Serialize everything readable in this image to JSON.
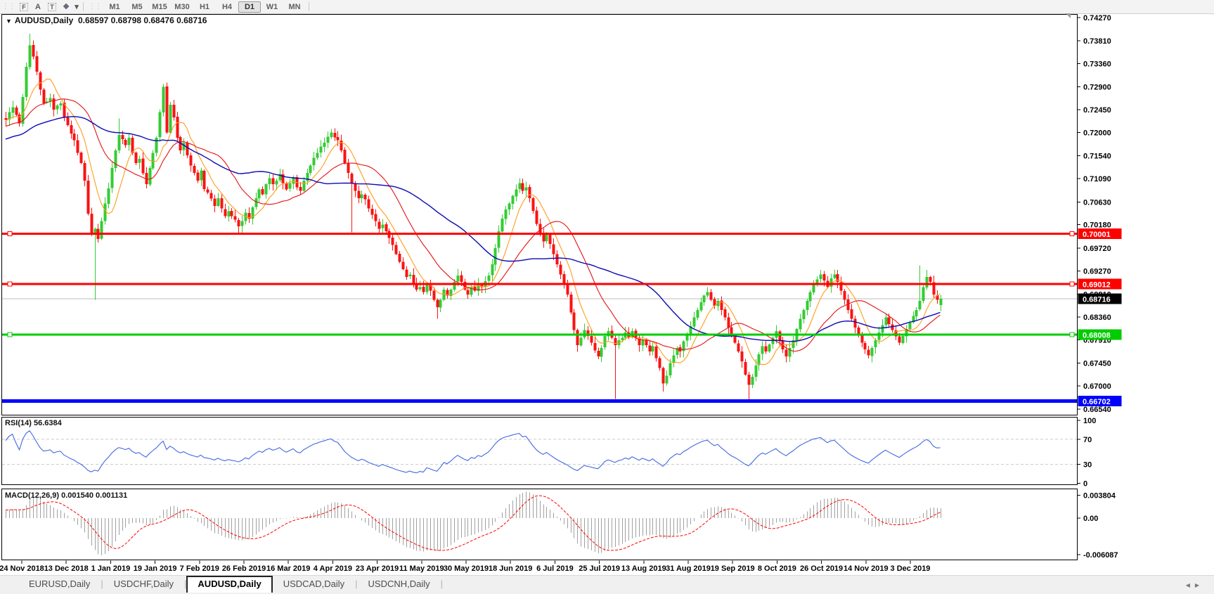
{
  "toolbar": {
    "icons": [
      {
        "name": "chart-window-icon",
        "glyph": "F"
      },
      {
        "name": "font-icon",
        "glyph": "A"
      },
      {
        "name": "text-tool-icon",
        "glyph": "T"
      },
      {
        "name": "color-scheme-icon",
        "glyph": "❖"
      },
      {
        "name": "dropdown-arrow-icon",
        "glyph": "▾"
      }
    ],
    "timeframes": [
      "M1",
      "M5",
      "M15",
      "M30",
      "H1",
      "H4",
      "D1",
      "W1",
      "MN"
    ],
    "active_timeframe": "D1"
  },
  "chart": {
    "marker": "▼",
    "symbol": "AUDUSD,Daily",
    "ohlc_line": "0.68597 0.68798 0.68476 0.68716"
  },
  "price_axis": {
    "labels": [
      "0.74270",
      "0.73810",
      "0.73360",
      "0.72900",
      "0.72450",
      "0.72000",
      "0.71540",
      "0.71090",
      "0.70630",
      "0.70180",
      "0.69720",
      "0.69270",
      "0.68810",
      "0.68360",
      "0.67910",
      "0.67450",
      "0.67000",
      "0.66540"
    ]
  },
  "date_axis": {
    "labels": [
      "24 Nov 2018",
      "13 Dec 2018",
      "1 Jan 2019",
      "19 Jan 2019",
      "7 Feb 2019",
      "26 Feb 2019",
      "16 Mar 2019",
      "4 Apr 2019",
      "23 Apr 2019",
      "11 May 2019",
      "30 May 2019",
      "18 Jun 2019",
      "6 Jul 2019",
      "25 Jul 2019",
      "13 Aug 2019",
      "31 Aug 2019",
      "19 Sep 2019",
      "8 Oct 2019",
      "26 Oct 2019",
      "14 Nov 2019",
      "3 Dec 2019"
    ]
  },
  "rsi_panel": {
    "label": "RSI(14) 56.6384",
    "axis_labels": [
      "100",
      "70",
      "30",
      "0"
    ],
    "dashed_levels": [
      70,
      30
    ]
  },
  "macd_panel": {
    "label": "MACD(12,26,9) 0.001540 0.001131",
    "axis_labels": [
      "0.003804",
      "0.00",
      "-0.006087"
    ]
  },
  "tabs": {
    "labels": [
      "EURUSD,Daily",
      "USDCHF,Daily",
      "AUDUSD,Daily",
      "USDCAD,Daily",
      "USDCNH,Daily"
    ],
    "active": "AUDUSD,Daily",
    "scroll_left": "◀",
    "scroll_right": "▶"
  },
  "colors": {
    "bull": "#33cc33",
    "bear": "#fb1212",
    "ma_fast": "#ff9c1b",
    "ma_mid": "#e31212",
    "ma_slow": "#0a0ab4",
    "rsi_line": "#4169e1",
    "macd_hist": "#a0a0a0",
    "macd_signal": "#ff0000",
    "level_dash": "#c9c9c9",
    "current_price_line": "#bdbdbd",
    "axis_text": "#000000"
  },
  "chart_data": {
    "type": "candlestick",
    "symbol": "AUDUSD",
    "timeframe": "Daily",
    "visible_price_range": {
      "top": 0.7427,
      "bottom": 0.6654
    },
    "current_bar": {
      "open": 0.68597,
      "high": 0.68798,
      "low": 0.68476,
      "close": 0.68716
    },
    "horizontal_lines": [
      {
        "price": 0.70001,
        "label": "0.70001",
        "color": "#ff0000",
        "badge": "#ff0000",
        "badge_text": "#ffffff",
        "width": 3,
        "handles": true
      },
      {
        "price": 0.69012,
        "label": "0.69012",
        "color": "#ff0000",
        "badge": "#ff0000",
        "badge_text": "#ffffff",
        "width": 3,
        "handles": true
      },
      {
        "price": 0.68716,
        "label": "0.68716",
        "color": "#bdbdbd",
        "badge": "#000000",
        "badge_text": "#ffffff",
        "width": 1,
        "handles": false,
        "role": "current-price"
      },
      {
        "price": 0.68008,
        "label": "0.68008",
        "color": "#00cc00",
        "badge": "#00cc00",
        "badge_text": "#ffffff",
        "width": 3,
        "handles": true
      },
      {
        "price": 0.66702,
        "label": "0.66702",
        "color": "#0000ff",
        "badge": "#0000ff",
        "badge_text": "#ffffff",
        "width": 5,
        "handles": false
      }
    ],
    "candles": {
      "count": 274,
      "close_anchors": [
        [
          0,
          0.7225
        ],
        [
          1,
          0.724
        ],
        [
          2,
          0.725
        ],
        [
          4,
          0.7218
        ],
        [
          5,
          0.727
        ],
        [
          6,
          0.733
        ],
        [
          7,
          0.7372
        ],
        [
          8,
          0.735
        ],
        [
          9,
          0.732
        ],
        [
          10,
          0.7285
        ],
        [
          11,
          0.7258
        ],
        [
          13,
          0.7268
        ],
        [
          14,
          0.7245
        ],
        [
          16,
          0.7258
        ],
        [
          17,
          0.723
        ],
        [
          18,
          0.7215
        ],
        [
          20,
          0.7185
        ],
        [
          21,
          0.716
        ],
        [
          22,
          0.714
        ],
        [
          23,
          0.7105
        ],
        [
          24,
          0.704
        ],
        [
          25,
          0.7
        ],
        [
          26,
          0.701
        ],
        [
          27,
          0.699
        ],
        [
          28,
          0.7025
        ],
        [
          29,
          0.706
        ],
        [
          30,
          0.709
        ],
        [
          31,
          0.713
        ],
        [
          32,
          0.7165
        ],
        [
          33,
          0.7195
        ],
        [
          35,
          0.7175
        ],
        [
          36,
          0.719
        ],
        [
          37,
          0.716
        ],
        [
          38,
          0.714
        ],
        [
          39,
          0.7148
        ],
        [
          40,
          0.712
        ],
        [
          41,
          0.7098
        ],
        [
          42,
          0.713
        ],
        [
          43,
          0.716
        ],
        [
          44,
          0.719
        ],
        [
          45,
          0.724
        ],
        [
          46,
          0.729
        ],
        [
          47,
          0.72
        ],
        [
          48,
          0.7255
        ],
        [
          49,
          0.723
        ],
        [
          50,
          0.719
        ],
        [
          51,
          0.7165
        ],
        [
          52,
          0.718
        ],
        [
          53,
          0.7155
        ],
        [
          54,
          0.7135
        ],
        [
          55,
          0.712
        ],
        [
          56,
          0.7105
        ],
        [
          57,
          0.7125
        ],
        [
          58,
          0.7088
        ],
        [
          60,
          0.707
        ],
        [
          61,
          0.7055
        ],
        [
          62,
          0.707
        ],
        [
          63,
          0.705
        ],
        [
          64,
          0.7035
        ],
        [
          65,
          0.7045
        ],
        [
          66,
          0.7035
        ],
        [
          67,
          0.7028
        ],
        [
          68,
          0.7015
        ],
        [
          69,
          0.7025
        ],
        [
          70,
          0.7042
        ],
        [
          71,
          0.703
        ],
        [
          72,
          0.7052
        ],
        [
          73,
          0.707
        ],
        [
          74,
          0.7088
        ],
        [
          75,
          0.7078
        ],
        [
          76,
          0.7098
        ],
        [
          77,
          0.711
        ],
        [
          78,
          0.7098
        ],
        [
          79,
          0.7105
        ],
        [
          80,
          0.7118
        ],
        [
          81,
          0.71
        ],
        [
          82,
          0.7088
        ],
        [
          83,
          0.71
        ],
        [
          84,
          0.7112
        ],
        [
          85,
          0.7092
        ],
        [
          86,
          0.7085
        ],
        [
          87,
          0.7105
        ],
        [
          88,
          0.712
        ],
        [
          89,
          0.7135
        ],
        [
          90,
          0.715
        ],
        [
          91,
          0.716
        ],
        [
          92,
          0.7172
        ],
        [
          93,
          0.718
        ],
        [
          94,
          0.7192
        ],
        [
          95,
          0.72
        ],
        [
          97,
          0.7185
        ],
        [
          98,
          0.7165
        ],
        [
          99,
          0.714
        ],
        [
          100,
          0.712
        ],
        [
          101,
          0.71
        ],
        [
          102,
          0.7085
        ],
        [
          103,
          0.707
        ],
        [
          104,
          0.7078
        ],
        [
          105,
          0.7068
        ],
        [
          106,
          0.705
        ],
        [
          107,
          0.7038
        ],
        [
          108,
          0.7025
        ],
        [
          109,
          0.701
        ],
        [
          110,
          0.7018
        ],
        [
          111,
          0.7005
        ],
        [
          112,
          0.6992
        ],
        [
          113,
          0.6978
        ],
        [
          114,
          0.696
        ],
        [
          115,
          0.6945
        ],
        [
          116,
          0.693
        ],
        [
          117,
          0.6915
        ],
        [
          118,
          0.692
        ],
        [
          119,
          0.6902
        ],
        [
          120,
          0.689
        ],
        [
          121,
          0.6895
        ],
        [
          122,
          0.6885
        ],
        [
          123,
          0.69
        ],
        [
          124,
          0.6888
        ],
        [
          125,
          0.687
        ],
        [
          126,
          0.6855
        ],
        [
          127,
          0.687
        ],
        [
          128,
          0.689
        ],
        [
          129,
          0.6878
        ],
        [
          130,
          0.689
        ],
        [
          131,
          0.6905
        ],
        [
          132,
          0.6918
        ],
        [
          133,
          0.6905
        ],
        [
          134,
          0.689
        ],
        [
          135,
          0.688
        ],
        [
          136,
          0.6895
        ],
        [
          137,
          0.6888
        ],
        [
          138,
          0.6902
        ],
        [
          139,
          0.6895
        ],
        [
          141,
          0.6918
        ],
        [
          142,
          0.694
        ],
        [
          143,
          0.6972
        ],
        [
          144,
          0.7005
        ],
        [
          145,
          0.703
        ],
        [
          146,
          0.7048
        ],
        [
          147,
          0.706
        ],
        [
          148,
          0.7075
        ],
        [
          149,
          0.7088
        ],
        [
          150,
          0.71
        ],
        [
          151,
          0.7085
        ],
        [
          152,
          0.7092
        ],
        [
          153,
          0.707
        ],
        [
          154,
          0.7045
        ],
        [
          155,
          0.702
        ],
        [
          156,
          0.7
        ],
        [
          157,
          0.6985
        ],
        [
          158,
          0.6998
        ],
        [
          159,
          0.698
        ],
        [
          160,
          0.696
        ],
        [
          161,
          0.694
        ],
        [
          162,
          0.692
        ],
        [
          163,
          0.69
        ],
        [
          164,
          0.688
        ],
        [
          165,
          0.6845
        ],
        [
          166,
          0.681
        ],
        [
          167,
          0.678
        ],
        [
          168,
          0.6795
        ],
        [
          169,
          0.681
        ],
        [
          170,
          0.6798
        ],
        [
          171,
          0.6785
        ],
        [
          172,
          0.677
        ],
        [
          173,
          0.6758
        ],
        [
          174,
          0.6775
        ],
        [
          175,
          0.6798
        ],
        [
          176,
          0.6808
        ],
        [
          177,
          0.6795
        ],
        [
          178,
          0.678
        ],
        [
          180,
          0.6795
        ],
        [
          181,
          0.6805
        ],
        [
          182,
          0.6795
        ],
        [
          183,
          0.6808
        ],
        [
          184,
          0.6795
        ],
        [
          185,
          0.678
        ],
        [
          186,
          0.679
        ],
        [
          187,
          0.678
        ],
        [
          188,
          0.6768
        ],
        [
          189,
          0.6778
        ],
        [
          190,
          0.6755
        ],
        [
          191,
          0.6735
        ],
        [
          192,
          0.6705
        ],
        [
          193,
          0.672
        ],
        [
          194,
          0.6745
        ],
        [
          195,
          0.676
        ],
        [
          196,
          0.6775
        ],
        [
          197,
          0.6768
        ],
        [
          198,
          0.6788
        ],
        [
          199,
          0.68
        ],
        [
          200,
          0.6818
        ],
        [
          201,
          0.6835
        ],
        [
          202,
          0.685
        ],
        [
          203,
          0.6865
        ],
        [
          204,
          0.6878
        ],
        [
          205,
          0.6885
        ],
        [
          206,
          0.687
        ],
        [
          207,
          0.6858
        ],
        [
          208,
          0.6868
        ],
        [
          209,
          0.685
        ],
        [
          210,
          0.6835
        ],
        [
          211,
          0.6815
        ],
        [
          212,
          0.6798
        ],
        [
          213,
          0.6785
        ],
        [
          214,
          0.6768
        ],
        [
          215,
          0.6748
        ],
        [
          216,
          0.6722
        ],
        [
          217,
          0.6702
        ],
        [
          218,
          0.6718
        ],
        [
          219,
          0.674
        ],
        [
          220,
          0.6762
        ],
        [
          221,
          0.6778
        ],
        [
          222,
          0.6768
        ],
        [
          223,
          0.6782
        ],
        [
          224,
          0.6795
        ],
        [
          225,
          0.6808
        ],
        [
          226,
          0.6788
        ],
        [
          227,
          0.6772
        ],
        [
          228,
          0.6758
        ],
        [
          229,
          0.6775
        ],
        [
          230,
          0.679
        ],
        [
          231,
          0.6812
        ],
        [
          232,
          0.6832
        ],
        [
          233,
          0.685
        ],
        [
          234,
          0.6868
        ],
        [
          235,
          0.6885
        ],
        [
          236,
          0.6902
        ],
        [
          238,
          0.692
        ],
        [
          239,
          0.6908
        ],
        [
          240,
          0.6895
        ],
        [
          241,
          0.6912
        ],
        [
          242,
          0.692
        ],
        [
          243,
          0.6905
        ],
        [
          244,
          0.6888
        ],
        [
          245,
          0.687
        ],
        [
          246,
          0.685
        ],
        [
          247,
          0.6832
        ],
        [
          248,
          0.6815
        ],
        [
          249,
          0.68
        ],
        [
          250,
          0.6785
        ],
        [
          251,
          0.6772
        ],
        [
          252,
          0.676
        ],
        [
          253,
          0.6775
        ],
        [
          254,
          0.679
        ],
        [
          255,
          0.6805
        ],
        [
          256,
          0.682
        ],
        [
          257,
          0.6835
        ],
        [
          258,
          0.6822
        ],
        [
          259,
          0.681
        ],
        [
          260,
          0.6798
        ],
        [
          261,
          0.6785
        ],
        [
          262,
          0.6798
        ],
        [
          263,
          0.6812
        ],
        [
          264,
          0.6825
        ],
        [
          265,
          0.6838
        ],
        [
          266,
          0.685
        ],
        [
          267,
          0.6868
        ],
        [
          268,
          0.6895
        ],
        [
          269,
          0.6915
        ],
        [
          270,
          0.6905
        ],
        [
          271,
          0.688
        ],
        [
          272,
          0.687
        ],
        [
          273,
          0.68716
        ]
      ],
      "wick_overrides": [
        {
          "i": 7,
          "high": 0.7395
        },
        {
          "i": 26,
          "low": 0.687
        },
        {
          "i": 33,
          "high": 0.7228
        },
        {
          "i": 46,
          "high": 0.7296
        },
        {
          "i": 69,
          "low": 0.7
        },
        {
          "i": 95,
          "high": 0.7207
        },
        {
          "i": 101,
          "low": 0.7003
        },
        {
          "i": 126,
          "low": 0.6832
        },
        {
          "i": 150,
          "high": 0.711
        },
        {
          "i": 178,
          "low": 0.6674
        },
        {
          "i": 192,
          "low": 0.6689
        },
        {
          "i": 205,
          "high": 0.6895
        },
        {
          "i": 217,
          "low": 0.66703
        },
        {
          "i": 238,
          "high": 0.6929
        },
        {
          "i": 252,
          "low": 0.6754
        },
        {
          "i": 267,
          "high": 0.6938
        },
        {
          "i": 269,
          "high": 0.6929
        }
      ]
    },
    "moving_averages": [
      {
        "name": "ma-fast",
        "period": 8,
        "method": "sma",
        "color": "#ff9c1b"
      },
      {
        "name": "ma-mid",
        "period": 20,
        "method": "sma",
        "color": "#e31212"
      },
      {
        "name": "ma-slow",
        "period": 45,
        "method": "sma",
        "color": "#0a0ab4"
      }
    ],
    "rsi": {
      "period": 14,
      "current": 56.6384,
      "scale": [
        0,
        100
      ],
      "dashed_levels": [
        70,
        30
      ]
    },
    "macd": {
      "fast_ema": 12,
      "slow_ema": 26,
      "signal_sma": 9,
      "current": 0.00154,
      "current_signal": 0.001131,
      "scale_max": 0.003804,
      "scale_min": -0.006087
    }
  }
}
